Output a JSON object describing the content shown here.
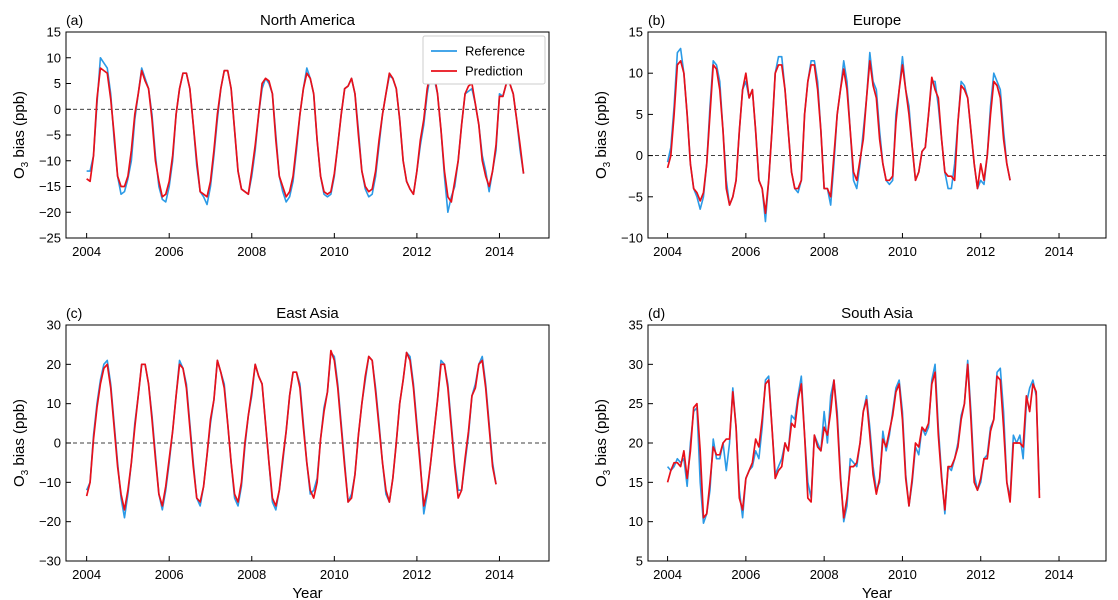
{
  "figure": {
    "xlabel": "Year",
    "ylabel_base": "O",
    "ylabel_sub": "3",
    "ylabel_rest": " bias (ppb)",
    "legend": {
      "reference_label": "Reference",
      "prediction_label": "Prediction",
      "placement": "top-right"
    },
    "colors": {
      "reference": "#2b9ae6",
      "prediction": "#e8101a",
      "zero_line": "#000000"
    }
  },
  "chart_data": [
    {
      "type": "line",
      "panel_label": "(a)",
      "title": "North America",
      "xlabel": "",
      "ylim": [
        -25,
        15
      ],
      "yticks": [
        -25,
        -20,
        -15,
        -10,
        -5,
        0,
        5,
        10,
        15
      ],
      "xlim": [
        2003.5,
        2015.2
      ],
      "xticks": [
        2004,
        2006,
        2008,
        2010,
        2012,
        2014
      ],
      "zero_line": true,
      "legend": true,
      "series": [
        {
          "name": "Reference",
          "color": "#2b9ae6",
          "monthly_start": 2004.0,
          "values": [
            -12,
            -12,
            -9,
            1,
            10,
            9,
            8,
            3,
            -6,
            -13,
            -16.5,
            -16,
            -13.5,
            -10,
            -2,
            3,
            8,
            6,
            4,
            -1,
            -9,
            -15,
            -17.5,
            -18,
            -15,
            -10,
            -1,
            4,
            7,
            7,
            4,
            -3,
            -11,
            -16,
            -17,
            -18.5,
            -15,
            -9,
            -2,
            4,
            7.5,
            7.5,
            4,
            -4,
            -12,
            -15.5,
            -16,
            -16.5,
            -13,
            -8,
            -1,
            4,
            6,
            5,
            3,
            -5,
            -13,
            -16,
            -18,
            -17,
            -14,
            -8,
            -1,
            4,
            8,
            6,
            3,
            -6,
            -13,
            -16.5,
            -17,
            -16.5,
            -13,
            -7,
            -1,
            4,
            4.5,
            6,
            3,
            -4,
            -12,
            -15.5,
            -17,
            -16.5,
            -13,
            -7,
            -1,
            3,
            6.5,
            6,
            4,
            -2,
            -10,
            -14,
            -15.5,
            -16.5,
            -12,
            -7,
            -3,
            3,
            7,
            6,
            3,
            -4,
            -13,
            -20,
            -17,
            -15,
            -10,
            -3,
            3,
            3.5,
            4,
            1,
            -3,
            -9,
            -12,
            -16,
            -12,
            -8,
            3,
            2.5,
            5,
            5,
            3,
            -2,
            -8,
            -12.5
          ]
        },
        {
          "name": "Prediction",
          "color": "#e8101a",
          "monthly_start": 2004.0,
          "values": [
            -13.5,
            -14,
            -9,
            2,
            8,
            7.5,
            7,
            2,
            -5,
            -13,
            -15,
            -15,
            -13,
            -8,
            -1,
            3,
            7.5,
            5.5,
            4,
            -2,
            -10,
            -14,
            -17,
            -16.5,
            -14,
            -9,
            -1,
            4,
            7,
            7,
            4,
            -3,
            -10,
            -16,
            -16.5,
            -17,
            -14,
            -8,
            -1,
            4,
            7.5,
            7.5,
            4,
            -4,
            -12,
            -15.5,
            -16,
            -16.5,
            -12,
            -7,
            -1,
            5,
            6,
            5.5,
            3,
            -6,
            -13,
            -15,
            -17,
            -16,
            -13,
            -7,
            -1,
            4,
            7,
            6,
            3,
            -6,
            -13,
            -16,
            -16.5,
            -16,
            -12.5,
            -7,
            -1,
            4,
            4.5,
            6,
            3,
            -5,
            -12,
            -15,
            -16,
            -15.5,
            -12,
            -6,
            -1,
            3,
            7,
            6,
            4,
            -2,
            -10,
            -14,
            -15.5,
            -16.5,
            -12,
            -6,
            -2,
            4,
            7.5,
            7,
            3,
            -4,
            -12,
            -17,
            -18,
            -14,
            -10,
            -3,
            3,
            4.5,
            5,
            1,
            -3,
            -10,
            -13,
            -15,
            -12,
            -7,
            2.5,
            2.5,
            5,
            5,
            3,
            -2,
            -7,
            -12.5
          ]
        }
      ]
    },
    {
      "type": "line",
      "panel_label": "(b)",
      "title": "Europe",
      "xlabel": "",
      "ylim": [
        -10,
        15
      ],
      "yticks": [
        -10,
        -5,
        0,
        5,
        10,
        15
      ],
      "xlim": [
        2003.5,
        2015.2
      ],
      "xticks": [
        2004,
        2006,
        2008,
        2010,
        2012,
        2014
      ],
      "zero_line": true,
      "legend": false,
      "series": [
        {
          "name": "Reference",
          "color": "#2b9ae6",
          "monthly_start": 2004.0,
          "values": [
            -0.8,
            1,
            6,
            12.5,
            13,
            10,
            5,
            -1,
            -4,
            -5,
            -6.5,
            -5,
            -1,
            6,
            11.5,
            11,
            9,
            3,
            -3,
            -6,
            -5,
            -3,
            3,
            8,
            9,
            7,
            8,
            3,
            -3,
            -4,
            -8,
            -3,
            3,
            10,
            12,
            12,
            8,
            3,
            -2,
            -4,
            -4.5,
            -3,
            5,
            9,
            11.5,
            11.5,
            9,
            3,
            -4,
            -4,
            -6,
            -1,
            5,
            8,
            11.5,
            9,
            3,
            -3,
            -4,
            -1,
            3,
            7,
            12.5,
            9,
            8,
            3,
            -1,
            -3,
            -3.5,
            -3,
            5,
            8,
            12,
            8,
            6,
            1,
            -3,
            -2,
            0.5,
            1,
            5,
            9,
            9,
            6,
            2,
            -2,
            -4,
            -4,
            -1,
            4,
            9,
            8.5,
            7,
            3,
            -1,
            -4,
            -3,
            -3.5,
            0,
            6,
            10,
            9,
            8,
            3,
            -1,
            -3
          ]
        },
        {
          "name": "Prediction",
          "color": "#e8101a",
          "monthly_start": 2004.0,
          "values": [
            -1.5,
            0,
            5,
            11,
            11.5,
            10,
            5,
            -1,
            -4,
            -4.5,
            -5.5,
            -4.5,
            -1,
            5,
            11,
            10.5,
            8,
            3,
            -4,
            -6,
            -5,
            -3,
            3,
            8,
            10,
            7,
            8,
            3,
            -3,
            -4,
            -7,
            -3,
            3,
            10,
            11,
            11,
            8,
            3,
            -2,
            -4,
            -4,
            -3,
            5,
            9,
            11,
            11,
            8,
            3,
            -4,
            -4,
            -5,
            0,
            5,
            8,
            10.5,
            8,
            3,
            -2,
            -3,
            -0.5,
            2,
            7,
            11.5,
            8.5,
            7,
            2,
            -1,
            -3,
            -3,
            -2.5,
            4,
            8,
            11,
            8,
            5,
            1,
            -3,
            -2,
            0.5,
            1,
            5,
            9.5,
            8,
            7,
            2,
            -2,
            -2.5,
            -2.5,
            -3,
            4,
            8.5,
            8,
            7,
            3,
            -1,
            -4,
            -1,
            -3,
            0,
            5,
            9,
            8.5,
            7,
            2,
            -1,
            -3
          ]
        }
      ]
    },
    {
      "type": "line",
      "panel_label": "(c)",
      "title": "East Asia",
      "xlabel": "Year",
      "ylim": [
        -30,
        30
      ],
      "yticks": [
        -30,
        -20,
        -10,
        0,
        10,
        20,
        30
      ],
      "xlim": [
        2003.5,
        2015.2
      ],
      "xticks": [
        2004,
        2006,
        2008,
        2010,
        2012,
        2014
      ],
      "zero_line": true,
      "legend": false,
      "series": [
        {
          "name": "Reference",
          "color": "#2b9ae6",
          "monthly_start": 2004.0,
          "values": [
            -12,
            -10,
            2,
            10,
            16,
            20,
            21,
            15,
            5,
            -5,
            -14,
            -19,
            -13,
            -5,
            5,
            12,
            20,
            20,
            15,
            7,
            -3,
            -13,
            -17,
            -12,
            -5,
            3,
            12,
            21,
            19,
            15,
            5,
            -5,
            -14,
            -16,
            -11,
            -3,
            5,
            11,
            21,
            18,
            15,
            5,
            -5,
            -14,
            -16,
            -11,
            -1,
            7,
            12,
            20,
            17,
            15,
            5,
            -5,
            -15,
            -17,
            -12,
            -5,
            3,
            12,
            18,
            18,
            15,
            5,
            -5,
            -13,
            -12,
            -9,
            1,
            9,
            13,
            23,
            22,
            15,
            5,
            -5,
            -15,
            -13,
            -8,
            2,
            10,
            16,
            22,
            21,
            14,
            5,
            -5,
            -13,
            -15,
            -9,
            0,
            10,
            16,
            23,
            22,
            15,
            5,
            -5,
            -18,
            -13,
            -5,
            3,
            11,
            21,
            20,
            15,
            5,
            -5,
            -12,
            -12,
            -5,
            2,
            12,
            15,
            20,
            22,
            15,
            5,
            -5,
            -10.5
          ]
        },
        {
          "name": "Prediction",
          "color": "#e8101a",
          "monthly_start": 2004.0,
          "values": [
            -13.5,
            -10,
            1,
            9,
            15,
            19,
            20,
            14,
            4,
            -6,
            -13,
            -17,
            -12,
            -5,
            4,
            12,
            20,
            20,
            15,
            6,
            -4,
            -13,
            -16,
            -11,
            -4,
            3,
            12,
            20,
            19,
            14,
            4,
            -6,
            -14,
            -15,
            -11,
            -3,
            6,
            11,
            21,
            18,
            14,
            5,
            -5,
            -13,
            -15,
            -10,
            0,
            7,
            13,
            20,
            17,
            15,
            5,
            -5,
            -14,
            -16,
            -12,
            -4,
            3,
            12,
            18,
            18,
            14,
            4,
            -5,
            -12,
            -14,
            -10,
            1,
            8,
            13,
            23.5,
            21,
            14,
            4,
            -6,
            -15,
            -14,
            -8,
            2,
            10,
            17,
            22,
            21,
            13,
            4,
            -5,
            -12,
            -15,
            -9,
            0,
            10,
            16,
            23,
            21,
            14,
            4,
            -6,
            -16,
            -12,
            -5,
            3,
            11,
            20,
            20,
            14,
            4,
            -6,
            -14,
            -12,
            -4,
            3,
            12,
            14,
            20,
            21,
            14,
            4,
            -6,
            -10.5
          ]
        }
      ]
    },
    {
      "type": "line",
      "panel_label": "(d)",
      "title": "South Asia",
      "xlabel": "Year",
      "ylim": [
        5,
        35
      ],
      "yticks": [
        5,
        10,
        15,
        20,
        25,
        30,
        35
      ],
      "xlim": [
        2003.5,
        2015.2
      ],
      "xticks": [
        2004,
        2006,
        2008,
        2010,
        2012,
        2014
      ],
      "zero_line": false,
      "legend": false,
      "series": [
        {
          "name": "Reference",
          "color": "#2b9ae6",
          "monthly_start": 2004.0,
          "values": [
            17,
            16.5,
            17,
            18,
            17.5,
            18,
            14.5,
            20,
            24,
            24.5,
            15,
            9.8,
            11,
            14,
            20.5,
            18,
            18,
            20,
            16.5,
            20,
            27,
            22,
            14,
            10.5,
            15.5,
            16.5,
            17,
            19,
            18,
            22,
            28,
            28.5,
            22,
            16,
            17,
            18,
            20,
            19,
            23.5,
            23,
            26,
            28.5,
            21,
            15,
            13,
            21,
            20,
            19,
            24,
            20,
            26,
            28,
            24,
            16,
            10,
            12,
            18,
            17.5,
            17,
            20,
            24,
            26,
            22,
            17,
            14,
            15,
            21.5,
            19,
            21,
            24,
            27,
            28,
            24,
            16,
            12,
            15,
            19.5,
            18.5,
            22,
            21,
            22,
            28,
            30,
            22,
            16,
            11,
            17,
            16.5,
            18,
            20,
            23.5,
            25,
            30.5,
            24,
            16,
            14,
            15,
            18,
            18.5,
            22,
            23,
            29,
            29.5,
            24,
            15,
            13,
            21,
            20,
            21,
            18,
            25,
            27,
            28,
            26,
            14
          ]
        },
        {
          "name": "Prediction",
          "color": "#e8101a",
          "monthly_start": 2004.0,
          "values": [
            15,
            16.5,
            17.5,
            17.5,
            17,
            19,
            15.5,
            19,
            24.5,
            25,
            19,
            10.5,
            11,
            15,
            19.5,
            18.5,
            18.5,
            20,
            20.5,
            20.5,
            26.5,
            22,
            13,
            11.5,
            15.5,
            16.5,
            17.5,
            20.5,
            19.5,
            23,
            27.5,
            28,
            22,
            15.5,
            16.5,
            17,
            20,
            19,
            22.5,
            22,
            25.5,
            27.5,
            21,
            13,
            12.5,
            21,
            19.5,
            19,
            22,
            21,
            24,
            28,
            23,
            15.5,
            10.5,
            13,
            17,
            17,
            17.5,
            20,
            24,
            25.5,
            21,
            16,
            13.5,
            15.5,
            20.5,
            19.5,
            21.5,
            23.5,
            26.5,
            27.5,
            23,
            15.5,
            12,
            15.5,
            20,
            19.5,
            22,
            21.5,
            22.5,
            27.5,
            29,
            21,
            15.5,
            11.5,
            17,
            17,
            18,
            19.5,
            23,
            25,
            30,
            23,
            15,
            14,
            15.5,
            18,
            18,
            21.5,
            23,
            28.5,
            28,
            22,
            15,
            12.5,
            20,
            20,
            20,
            19.5,
            26,
            24,
            27.5,
            26.5,
            13
          ]
        }
      ]
    }
  ]
}
